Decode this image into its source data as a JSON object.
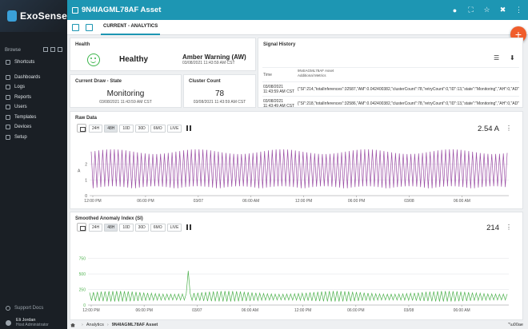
{
  "sidebar": {
    "logo": "ExoSense",
    "browse_label": "Browse",
    "items": [
      {
        "label": "Shortcuts",
        "icon": "star-icon"
      },
      {
        "label": "Dashboards",
        "icon": "dashboard-icon"
      },
      {
        "label": "Logs",
        "icon": "logs-icon"
      },
      {
        "label": "Reports",
        "icon": "reports-icon"
      },
      {
        "label": "Users",
        "icon": "users-icon"
      },
      {
        "label": "Templates",
        "icon": "templates-icon"
      },
      {
        "label": "Devices",
        "icon": "devices-icon"
      },
      {
        "label": "Setup",
        "icon": "gear-icon"
      }
    ],
    "support": "Support Docs",
    "user_name": "Eli Jordan",
    "user_role": "Host Administrator"
  },
  "topbar": {
    "title": "9N4IAGML78AF Asset"
  },
  "tabs": {
    "active": "CURRENT - ANALYTICS"
  },
  "health": {
    "title": "Health",
    "status": "Healthy",
    "warning": "Amber Warning (AW)",
    "timestamp": "03/08/2021 11:43:59 AM CST"
  },
  "draw": {
    "title": "Current Draw - State",
    "value": "Monitoring",
    "timestamp": "03/08/2021 11:43:59 AM CST"
  },
  "count": {
    "title": "Cluster Count",
    "value": "78",
    "timestamp": "03/08/2021 11:43:59 AM CST"
  },
  "signal": {
    "title": "Signal History",
    "col_time": "Time",
    "col_asset": "9N4IAGML78AF Asset",
    "col_metrics": "Additional Metrics",
    "rows": [
      {
        "time": "03/08/2021 11:43:59 AM CST",
        "value": "{\"SI\":214,\"totalInferences\":32587,\"AM\":0.042400382,\"clusterCount\":78,\"retryCount\":0,\"ID\":13,\"state\":\"Monitoring\",\"AH\":0,\"AD\":0}"
      },
      {
        "time": "03/08/2021 11:43:49 AM CST",
        "value": "{\"SI\":218,\"totalInferences\":32586,\"AM\":0.042400382,\"clusterCount\":78,\"retryCount\":0,\"ID\":13,\"state\":\"Monitoring\",\"AH\":0,\"AD\":0}"
      }
    ]
  },
  "ranges": [
    "24H",
    "48H",
    "10D",
    "30D",
    "6MO",
    "LIVE"
  ],
  "selected_range": "48H",
  "raw": {
    "title": "Raw Data",
    "current": "2.54 A"
  },
  "anom": {
    "title": "Smoothed Anomaly Index (SI)",
    "current": "214"
  },
  "chart_data": [
    {
      "type": "line",
      "title": "Raw Data",
      "ylabel": "A",
      "yticks": [
        0,
        1,
        2
      ],
      "ylim": [
        0,
        3
      ],
      "xticks": [
        "12:00 PM",
        "06:00 PM",
        "03/07",
        "06:00 AM",
        "12:00 PM",
        "06:00 PM",
        "03/08",
        "06:00 AM"
      ],
      "series": [
        {
          "color": "#9b4fa5",
          "pattern": "oscillation between ~0.5 and ~2.9",
          "cycles": 108
        }
      ]
    },
    {
      "type": "line",
      "title": "Smoothed Anomaly Index (SI)",
      "yticks": [
        0,
        250,
        500,
        750
      ],
      "ylim": [
        0,
        900
      ],
      "xticks": [
        "12:00 PM",
        "06:00 PM",
        "03/07",
        "06:00 AM",
        "12:00 PM",
        "06:00 PM",
        "03/08",
        "06:00 AM"
      ],
      "series": [
        {
          "color": "#4fb24f",
          "pattern": "oscillation between ~60 and ~220 with spike near 03/07",
          "cycles": 108,
          "spike": 550
        }
      ]
    }
  ],
  "breadcrumb": {
    "root": "Analytics",
    "current": "9N4IAGML78AF Asset",
    "right": "\"\\u00ae"
  }
}
